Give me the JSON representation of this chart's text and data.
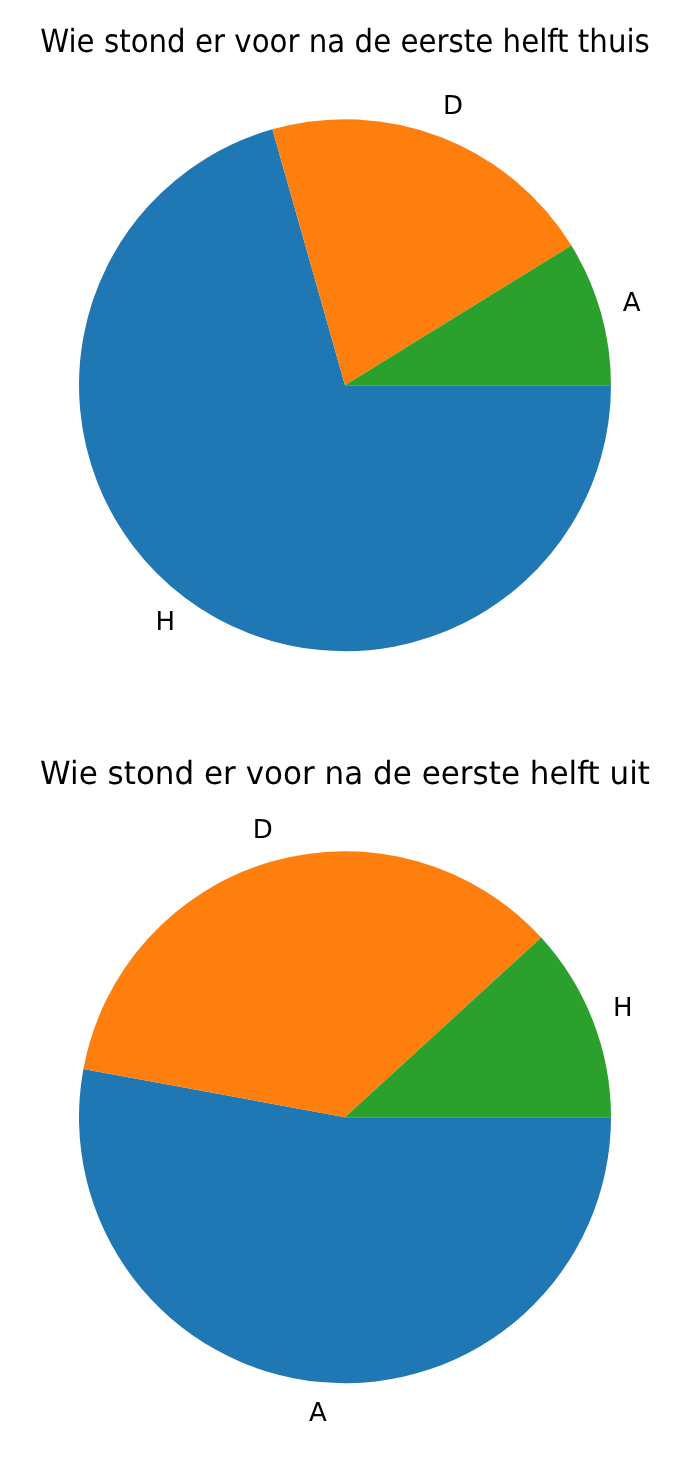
{
  "chart_data": [
    {
      "type": "pie",
      "title": "Wie stond er voor na de eerste helft thuis",
      "categories": [
        "H",
        "D",
        "A"
      ],
      "values": [
        70.6,
        20.6,
        8.8
      ],
      "colors": [
        "#1f77b4",
        "#ff7f0e",
        "#2ca02c"
      ]
    },
    {
      "type": "pie",
      "title": "Wie stond er voor na de eerste helft uit",
      "categories": [
        "A",
        "D",
        "H"
      ],
      "values": [
        52.9,
        35.3,
        11.8
      ],
      "colors": [
        "#1f77b4",
        "#ff7f0e",
        "#2ca02c"
      ]
    }
  ]
}
